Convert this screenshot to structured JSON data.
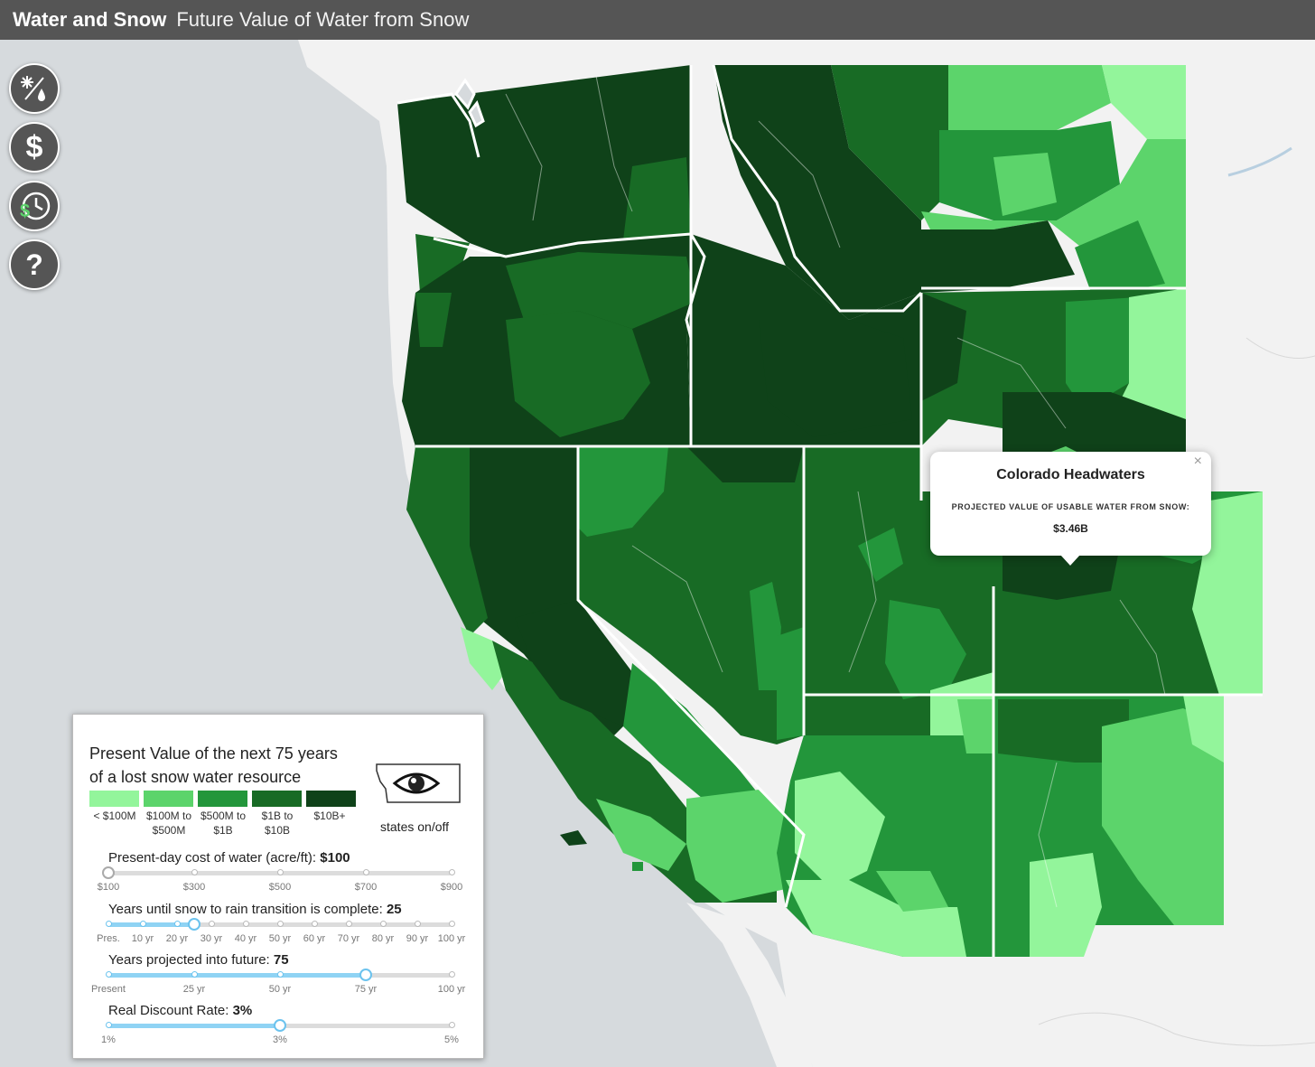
{
  "header": {
    "title": "Water and Snow",
    "subtitle": "Future Value of Water from Snow"
  },
  "controls": [
    {
      "name": "snow-water-toggle",
      "icon": "snowflake-drop-icon"
    },
    {
      "name": "value-button",
      "icon": "dollar-icon"
    },
    {
      "name": "future-value-button",
      "icon": "dollar-clock-icon"
    },
    {
      "name": "help-button",
      "icon": "question-icon",
      "glyph": "?"
    }
  ],
  "legend": {
    "title_line1": "Present Value of the next 75 years",
    "title_line2": "of a lost snow water resource",
    "classes": [
      {
        "label_1": "< $100M",
        "label_2": "",
        "color": "#93f59b"
      },
      {
        "label_1": "$100M to",
        "label_2": "$500M",
        "color": "#5cd46b"
      },
      {
        "label_1": "$500M to",
        "label_2": "$1B",
        "color": "#23963b"
      },
      {
        "label_1": "$1B to",
        "label_2": "$10B",
        "color": "#186b25"
      },
      {
        "label_1": "$10B+",
        "label_2": "",
        "color": "#0f4219"
      }
    ],
    "states_toggle_label": "states on/off"
  },
  "sliders": {
    "cost": {
      "label": "Present-day cost of water (acre/ft): ",
      "value": "$100",
      "ticks": [
        "$100",
        "$300",
        "$500",
        "$700",
        "$900"
      ],
      "selected_fraction": 0
    },
    "transition": {
      "label": "Years until snow to rain transition is complete: ",
      "value": "25",
      "ticks": [
        "Pres.",
        "10 yr",
        "20 yr",
        "30 yr",
        "40 yr",
        "50 yr",
        "60 yr",
        "70 yr",
        "80 yr",
        "90 yr",
        "100 yr"
      ],
      "selected_fraction": 0.25
    },
    "projection": {
      "label": "Years projected into future: ",
      "value": "75",
      "ticks": [
        "Present",
        "25 yr",
        "50 yr",
        "75 yr",
        "100 yr"
      ],
      "selected_fraction": 0.75
    },
    "discount": {
      "label": "Real Discount Rate: ",
      "value": "3%",
      "ticks": [
        "1%",
        "3%",
        "5%"
      ],
      "selected_fraction": 0.5
    }
  },
  "popup": {
    "title": "Colorado Headwaters",
    "label": "PROJECTED VALUE OF USABLE WATER FROM SNOW:",
    "value": "$3.46B",
    "close": "×"
  },
  "colors": {
    "ocean": "#d6dadd",
    "land": "#f2f2f2",
    "header": "#555555",
    "lt100m": "#93f59b",
    "m100to500": "#5cd46b",
    "m500to1b": "#23963b",
    "b1to10": "#186b25",
    "b10plus": "#0f4219"
  }
}
